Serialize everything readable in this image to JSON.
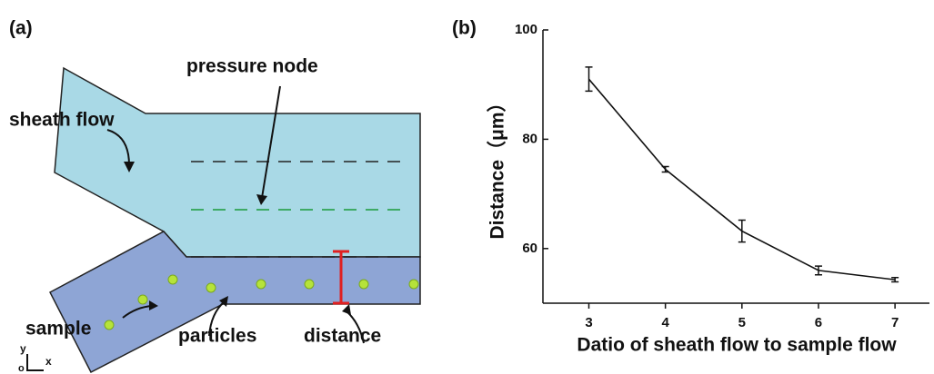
{
  "diagram": {
    "panel_label": "(a)",
    "sheath_flow": "sheath flow",
    "pressure_node": "pressure node",
    "sample": "sample",
    "particles": "particles",
    "distance": "distance",
    "axis_y": "y",
    "axis_x": "x",
    "origin": "o"
  },
  "chart_data": {
    "type": "line",
    "panel_label": "(b)",
    "x_label": "Datio of  sheath flow to sample  flow",
    "y_label": "Distance（μm）",
    "x": [
      3,
      4,
      5,
      6,
      7
    ],
    "values": [
      91,
      74.5,
      63.2,
      56,
      54.3
    ],
    "errors": [
      2.2,
      0.5,
      2,
      0.8,
      0.4
    ],
    "color": "#111111",
    "xlim": [
      2.4,
      7.45
    ],
    "ylim": [
      50,
      100
    ],
    "xticks": [
      3,
      4,
      5,
      6,
      7
    ],
    "yticks": [
      60,
      80,
      100
    ]
  }
}
